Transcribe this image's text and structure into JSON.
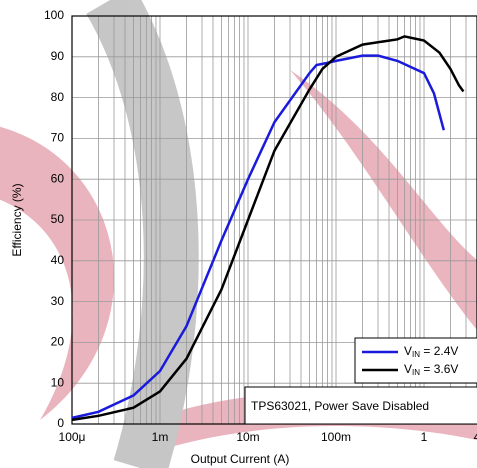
{
  "chart_data": {
    "type": "line",
    "xlabel": "Output Current (A)",
    "ylabel": "Efficiency (%)",
    "annotation": "TPS63021, Power Save Disabled",
    "xscale": "log",
    "xlim": [
      0.0001,
      4
    ],
    "ylim": [
      0,
      100
    ],
    "grid": true,
    "legend": "lower right",
    "xticks": [
      {
        "value": 0.0001,
        "label": "100μ"
      },
      {
        "value": 0.001,
        "label": "1m"
      },
      {
        "value": 0.01,
        "label": "10m"
      },
      {
        "value": 0.1,
        "label": "100m"
      },
      1,
      4
    ],
    "xminorticks": [
      0.0002,
      0.0003,
      0.0004,
      0.0005,
      0.0006,
      0.0007,
      0.0008,
      0.0009,
      0.002,
      0.003,
      0.004,
      0.005,
      0.006,
      0.007,
      0.008,
      0.009,
      0.02,
      0.03,
      0.04,
      0.05,
      0.06,
      0.07,
      0.08,
      0.09,
      0.2,
      0.3,
      0.4,
      0.5,
      0.6,
      0.7,
      0.8,
      0.9,
      2,
      3
    ],
    "yticks": [
      0,
      10,
      20,
      30,
      40,
      50,
      60,
      70,
      80,
      90,
      100
    ],
    "series": [
      {
        "name": "VIN = 2.4V",
        "color": "#1a1adc",
        "x": [
          0.0001,
          0.0002,
          0.0005,
          0.001,
          0.002,
          0.005,
          0.01,
          0.02,
          0.05,
          0.06,
          0.08,
          0.1,
          0.2,
          0.3,
          0.5,
          1,
          1.3,
          1.68
        ],
        "values": [
          1.5,
          3,
          7,
          13,
          24,
          45,
          60,
          74,
          86,
          88,
          88.5,
          89,
          90.3,
          90.3,
          89,
          86,
          81,
          72
        ]
      },
      {
        "name": "VIN = 3.6V",
        "color": "#000000",
        "x": [
          0.0001,
          0.0002,
          0.0005,
          0.001,
          0.002,
          0.005,
          0.01,
          0.02,
          0.05,
          0.07,
          0.1,
          0.2,
          0.5,
          0.6,
          1,
          1.5,
          2,
          2.5,
          2.8
        ],
        "values": [
          1,
          2,
          4,
          8,
          16,
          33,
          50,
          67,
          82,
          87,
          90,
          93,
          94.3,
          95,
          94,
          91,
          87,
          83,
          81.5
        ]
      }
    ]
  }
}
